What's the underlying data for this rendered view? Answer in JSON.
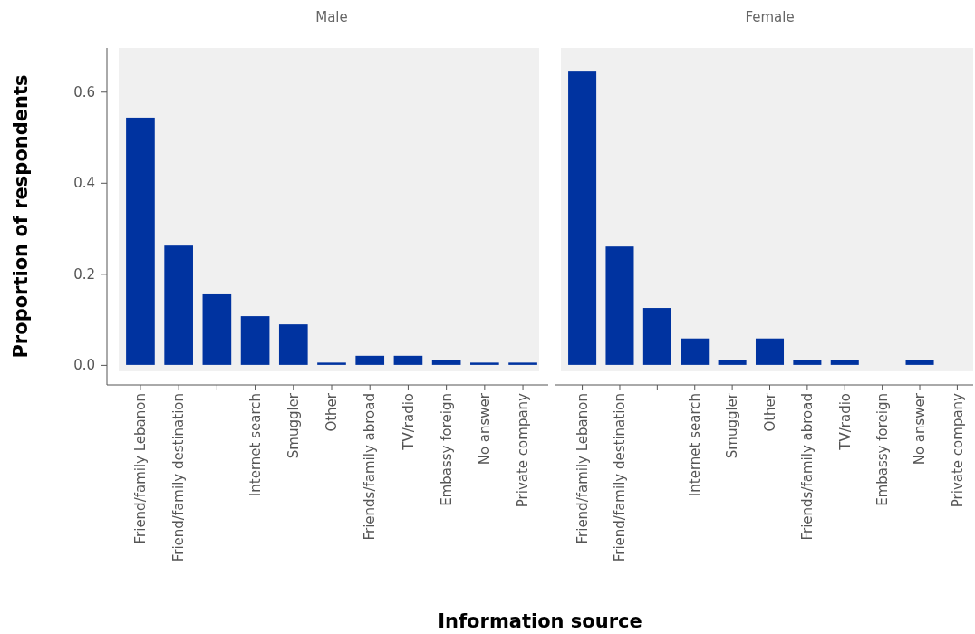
{
  "chart_data": [
    {
      "type": "bar",
      "title": "Male",
      "ylabel": "Proportion of respondents",
      "xlabel": "Information source",
      "categories": [
        "Friend/family Lebanon",
        "Friend/family destination",
        null,
        "Internet search",
        "Smuggler",
        "Other",
        "Friends/family abroad",
        "TV/radio",
        "Embassy foreign",
        "No answer",
        "Private company"
      ],
      "series": [
        {
          "color": "#0033a0",
          "values": [
            0.543,
            0.262,
            0.155,
            0.107,
            0.089,
            0.005,
            0.02,
            0.02,
            0.01,
            0.005,
            0.005
          ]
        }
      ],
      "ylim": [
        -0.044,
        0.696
      ],
      "yticks": [
        {
          "value": 0,
          "label": "0.0"
        },
        0.2,
        0.4,
        0.6
      ],
      "grid": false
    },
    {
      "type": "bar",
      "title": "Female",
      "categories": [
        "Friend/family Lebanon",
        "Friend/family destination",
        null,
        "Internet search",
        "Smuggler",
        "Other",
        "Friends/family abroad",
        "TV/radio",
        "Embassy foreign",
        "No answer",
        "Private company"
      ],
      "series": [
        {
          "color": "#0033a0",
          "values": [
            0.646,
            0.26,
            0.125,
            0.058,
            0.01,
            0.058,
            0.01,
            0.01,
            0,
            0.01,
            0
          ]
        }
      ],
      "ylim": [
        -0.044,
        0.696
      ],
      "grid": false,
      "tick_labels": "x"
    }
  ]
}
